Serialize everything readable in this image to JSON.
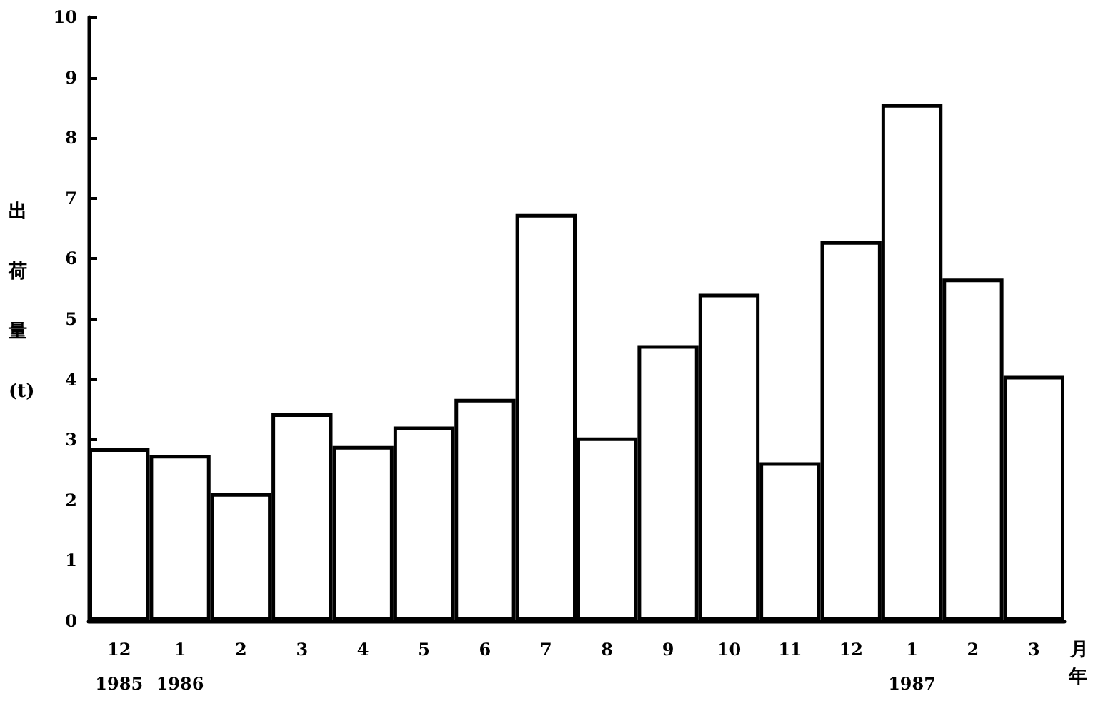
{
  "chart_data": {
    "type": "bar",
    "xlabel": "月",
    "ylabel": "出荷量 (t)",
    "annotations": [
      "年"
    ],
    "categories": [
      "12\n1985",
      "1\n1986",
      "2",
      "3",
      "4",
      "5",
      "6",
      "7",
      "8",
      "9",
      "10",
      "11",
      "12",
      "1\n1987",
      "2",
      "3"
    ],
    "values": [
      2.86,
      2.75,
      2.12,
      3.44,
      2.9,
      3.22,
      3.68,
      6.74,
      3.04,
      4.57,
      5.42,
      2.63,
      6.29,
      8.56,
      5.67,
      4.06
    ],
    "color": "#ffffff",
    "ylim": [
      0,
      10
    ],
    "yticks": [
      0,
      1,
      2,
      3,
      4,
      5,
      6,
      7,
      8,
      9,
      10
    ],
    "grid": false
  }
}
